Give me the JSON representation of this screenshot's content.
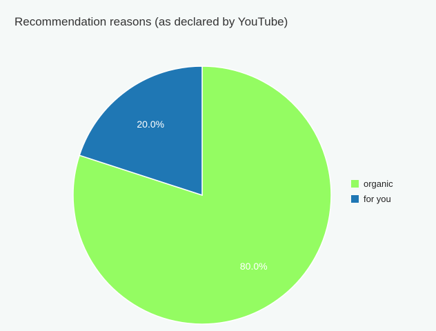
{
  "chart_data": {
    "type": "pie",
    "title": "Recommendation reasons (as declared by YouTube)",
    "legend_position": "right",
    "slices": [
      {
        "name": "organic",
        "value": 80.0,
        "label": "80.0%",
        "color": "#94fc62"
      },
      {
        "name": "for you",
        "value": 20.0,
        "label": "20.0%",
        "color": "#1f77b4"
      }
    ]
  }
}
